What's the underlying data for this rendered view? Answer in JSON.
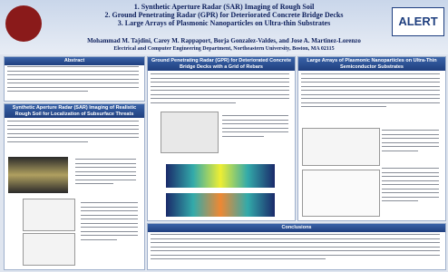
{
  "header": {
    "title_lines": [
      "1. Synthetic Aperture Radar (SAR) Imaging of Rough Soil",
      "2. Ground Penetrating Radar (GPR) for Deteriorated Concrete Bridge Decks",
      "3. Large Arrays of Plasmonic Nanoparticles on Ultra-thin Substrates"
    ],
    "authors": "Mohammad M. Tajdini, Carey M. Rappaport, Borja Gonzalez-Valdes, and Jose A. Martinez-Lorenzo",
    "affiliation": "Electrical and Computer Engineering Department, Northeastern University, Boston, MA 02115",
    "logo": "ALERT"
  },
  "sections": {
    "abstract": "Abstract",
    "sar": "Synthetic Aperture Radar (SAR) Imaging of Realistic Rough Soil for Localization of Subsurface Threats",
    "gpr": "Ground Penetrating Radar (GPR) for Deteriorated Concrete Bridge Decks with a Grid of Rebars",
    "plasmonic": "Large Arrays of Plasmonic Nanoparticles on Ultra-Thin Semiconductor Substrates",
    "conclusions": "Conclusions"
  }
}
